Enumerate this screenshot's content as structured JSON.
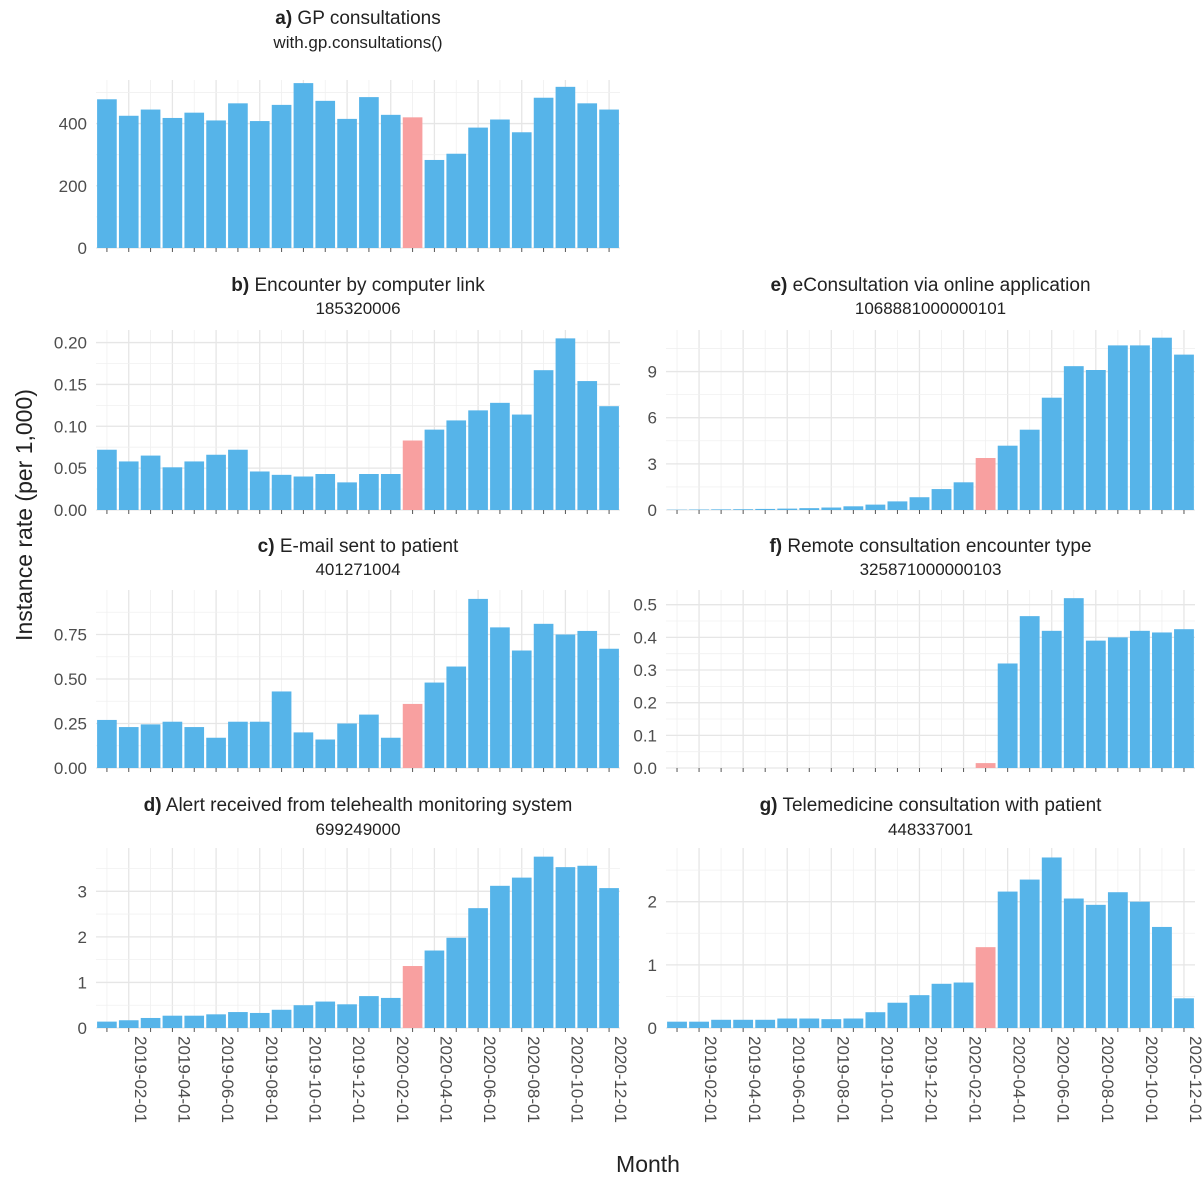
{
  "figure": {
    "ylabel": "Instance rate (per 1,000)",
    "xlabel": "Month",
    "colors": {
      "bar": "#56B4E9",
      "highlight": "#F8A0A0",
      "grid": "#e6e6e6"
    },
    "highlight_month": "2020-03-01"
  },
  "chart_data": [
    {
      "type": "bar",
      "id": "a",
      "tag": "a)",
      "title": "GP consultations",
      "subtitle": "with.gp.consultations()",
      "months": [
        "2019-01-01",
        "2019-02-01",
        "2019-03-01",
        "2019-04-01",
        "2019-05-01",
        "2019-06-01",
        "2019-07-01",
        "2019-08-01",
        "2019-09-01",
        "2019-10-01",
        "2019-11-01",
        "2019-12-01",
        "2020-01-01",
        "2020-02-01",
        "2020-03-01",
        "2020-04-01",
        "2020-05-01",
        "2020-06-01",
        "2020-07-01",
        "2020-08-01",
        "2020-09-01",
        "2020-10-01",
        "2020-11-01",
        "2020-12-01"
      ],
      "values": [
        478,
        425,
        445,
        418,
        435,
        410,
        465,
        408,
        460,
        530,
        473,
        415,
        485,
        428,
        420,
        283,
        303,
        387,
        413,
        372,
        483,
        518,
        465,
        445
      ],
      "ylim": [
        0,
        540
      ],
      "yticks": [
        "0",
        "200",
        "400"
      ],
      "ytick_values": [
        0,
        200,
        400
      ],
      "xlabels_shown": false
    },
    {
      "type": "bar",
      "id": "b",
      "tag": "b)",
      "title": "Encounter by computer link",
      "subtitle": "185320006",
      "months": [
        "2019-01-01",
        "2019-02-01",
        "2019-03-01",
        "2019-04-01",
        "2019-05-01",
        "2019-06-01",
        "2019-07-01",
        "2019-08-01",
        "2019-09-01",
        "2019-10-01",
        "2019-11-01",
        "2019-12-01",
        "2020-01-01",
        "2020-02-01",
        "2020-03-01",
        "2020-04-01",
        "2020-05-01",
        "2020-06-01",
        "2020-07-01",
        "2020-08-01",
        "2020-09-01",
        "2020-10-01",
        "2020-11-01",
        "2020-12-01"
      ],
      "values": [
        0.072,
        0.058,
        0.065,
        0.051,
        0.058,
        0.066,
        0.072,
        0.046,
        0.042,
        0.04,
        0.043,
        0.033,
        0.043,
        0.043,
        0.083,
        0.096,
        0.107,
        0.119,
        0.128,
        0.114,
        0.167,
        0.205,
        0.154,
        0.124
      ],
      "ylim": [
        0,
        0.215
      ],
      "yticks": [
        "0.00",
        "0.05",
        "0.10",
        "0.15",
        "0.20"
      ],
      "ytick_values": [
        0,
        0.05,
        0.1,
        0.15,
        0.2
      ],
      "xlabels_shown": false
    },
    {
      "type": "bar",
      "id": "c",
      "tag": "c)",
      "title": "E-mail sent to patient",
      "subtitle": "401271004",
      "months": [
        "2019-01-01",
        "2019-02-01",
        "2019-03-01",
        "2019-04-01",
        "2019-05-01",
        "2019-06-01",
        "2019-07-01",
        "2019-08-01",
        "2019-09-01",
        "2019-10-01",
        "2019-11-01",
        "2019-12-01",
        "2020-01-01",
        "2020-02-01",
        "2020-03-01",
        "2020-04-01",
        "2020-05-01",
        "2020-06-01",
        "2020-07-01",
        "2020-08-01",
        "2020-09-01",
        "2020-10-01",
        "2020-11-01",
        "2020-12-01"
      ],
      "values": [
        0.27,
        0.23,
        0.245,
        0.26,
        0.23,
        0.17,
        0.26,
        0.26,
        0.43,
        0.2,
        0.16,
        0.25,
        0.3,
        0.17,
        0.36,
        0.48,
        0.57,
        0.95,
        0.79,
        0.66,
        0.81,
        0.75,
        0.77,
        0.67
      ],
      "ylim": [
        0,
        1.0
      ],
      "yticks": [
        "0.00",
        "0.25",
        "0.50",
        "0.75"
      ],
      "ytick_values": [
        0,
        0.25,
        0.5,
        0.75
      ],
      "xlabels_shown": false
    },
    {
      "type": "bar",
      "id": "d",
      "tag": "d)",
      "title": "Alert received from telehealth monitoring system",
      "subtitle": "699249000",
      "months": [
        "2019-01-01",
        "2019-02-01",
        "2019-03-01",
        "2019-04-01",
        "2019-05-01",
        "2019-06-01",
        "2019-07-01",
        "2019-08-01",
        "2019-09-01",
        "2019-10-01",
        "2019-11-01",
        "2019-12-01",
        "2020-01-01",
        "2020-02-01",
        "2020-03-01",
        "2020-04-01",
        "2020-05-01",
        "2020-06-01",
        "2020-07-01",
        "2020-08-01",
        "2020-09-01",
        "2020-10-01",
        "2020-11-01",
        "2020-12-01"
      ],
      "values": [
        0.14,
        0.17,
        0.22,
        0.27,
        0.27,
        0.3,
        0.35,
        0.33,
        0.4,
        0.5,
        0.58,
        0.52,
        0.7,
        0.66,
        1.36,
        1.7,
        1.98,
        2.63,
        3.12,
        3.3,
        3.76,
        3.53,
        3.56,
        3.07
      ],
      "ylim": [
        0,
        3.95
      ],
      "yticks": [
        "0",
        "1",
        "2",
        "3"
      ],
      "ytick_values": [
        0,
        1,
        2,
        3
      ],
      "xlabels_shown": true
    },
    {
      "type": "bar",
      "id": "e",
      "tag": "e)",
      "title": "eConsultation via online application",
      "subtitle": "1068881000000101",
      "months": [
        "2019-01-01",
        "2019-02-01",
        "2019-03-01",
        "2019-04-01",
        "2019-05-01",
        "2019-06-01",
        "2019-07-01",
        "2019-08-01",
        "2019-09-01",
        "2019-10-01",
        "2019-11-01",
        "2019-12-01",
        "2020-01-01",
        "2020-02-01",
        "2020-03-01",
        "2020-04-01",
        "2020-05-01",
        "2020-06-01",
        "2020-07-01",
        "2020-08-01",
        "2020-09-01",
        "2020-10-01",
        "2020-11-01",
        "2020-12-01"
      ],
      "values": [
        0.02,
        0.03,
        0.04,
        0.05,
        0.07,
        0.09,
        0.12,
        0.16,
        0.24,
        0.35,
        0.56,
        0.83,
        1.36,
        1.8,
        3.38,
        4.18,
        5.22,
        7.3,
        9.35,
        9.1,
        10.7,
        10.7,
        11.2,
        10.1
      ],
      "ylim": [
        0,
        11.7
      ],
      "yticks": [
        "0",
        "3",
        "6",
        "9"
      ],
      "ytick_values": [
        0,
        3,
        6,
        9
      ],
      "xlabels_shown": false
    },
    {
      "type": "bar",
      "id": "f",
      "tag": "f)",
      "title": "Remote consultation encounter type",
      "subtitle": "325871000000103",
      "months": [
        "2019-01-01",
        "2019-02-01",
        "2019-03-01",
        "2019-04-01",
        "2019-05-01",
        "2019-06-01",
        "2019-07-01",
        "2019-08-01",
        "2019-09-01",
        "2019-10-01",
        "2019-11-01",
        "2019-12-01",
        "2020-01-01",
        "2020-02-01",
        "2020-03-01",
        "2020-04-01",
        "2020-05-01",
        "2020-06-01",
        "2020-07-01",
        "2020-08-01",
        "2020-09-01",
        "2020-10-01",
        "2020-11-01",
        "2020-12-01"
      ],
      "values": [
        0,
        0,
        0,
        0,
        0,
        0,
        0,
        0,
        0,
        0,
        0,
        0,
        0,
        0,
        0.015,
        0.32,
        0.465,
        0.42,
        0.52,
        0.39,
        0.4,
        0.42,
        0.415,
        0.425
      ],
      "ylim": [
        0,
        0.545
      ],
      "yticks": [
        "0.0",
        "0.1",
        "0.2",
        "0.3",
        "0.4",
        "0.5"
      ],
      "ytick_values": [
        0,
        0.1,
        0.2,
        0.3,
        0.4,
        0.5
      ],
      "xlabels_shown": false
    },
    {
      "type": "bar",
      "id": "g",
      "tag": "g)",
      "title": "Telemedicine consultation with patient",
      "subtitle": "448337001",
      "months": [
        "2019-01-01",
        "2019-02-01",
        "2019-03-01",
        "2019-04-01",
        "2019-05-01",
        "2019-06-01",
        "2019-07-01",
        "2019-08-01",
        "2019-09-01",
        "2019-10-01",
        "2019-11-01",
        "2019-12-01",
        "2020-01-01",
        "2020-02-01",
        "2020-03-01",
        "2020-04-01",
        "2020-05-01",
        "2020-06-01",
        "2020-07-01",
        "2020-08-01",
        "2020-09-01",
        "2020-10-01",
        "2020-11-01",
        "2020-12-01"
      ],
      "values": [
        0.1,
        0.1,
        0.13,
        0.13,
        0.13,
        0.15,
        0.15,
        0.14,
        0.15,
        0.25,
        0.4,
        0.52,
        0.7,
        0.72,
        1.28,
        2.16,
        2.35,
        2.7,
        2.05,
        1.95,
        2.15,
        2.0,
        1.6,
        0.47
      ],
      "ylim": [
        0,
        2.85
      ],
      "yticks": [
        "0",
        "1",
        "2"
      ],
      "ytick_values": [
        0,
        1,
        2
      ],
      "xlabels_shown": true
    }
  ],
  "x_tick_labels": [
    "2019-02-01",
    "2019-04-01",
    "2019-06-01",
    "2019-08-01",
    "2019-10-01",
    "2019-12-01",
    "2020-02-01",
    "2020-04-01",
    "2020-06-01",
    "2020-08-01",
    "2020-10-01",
    "2020-12-01"
  ]
}
